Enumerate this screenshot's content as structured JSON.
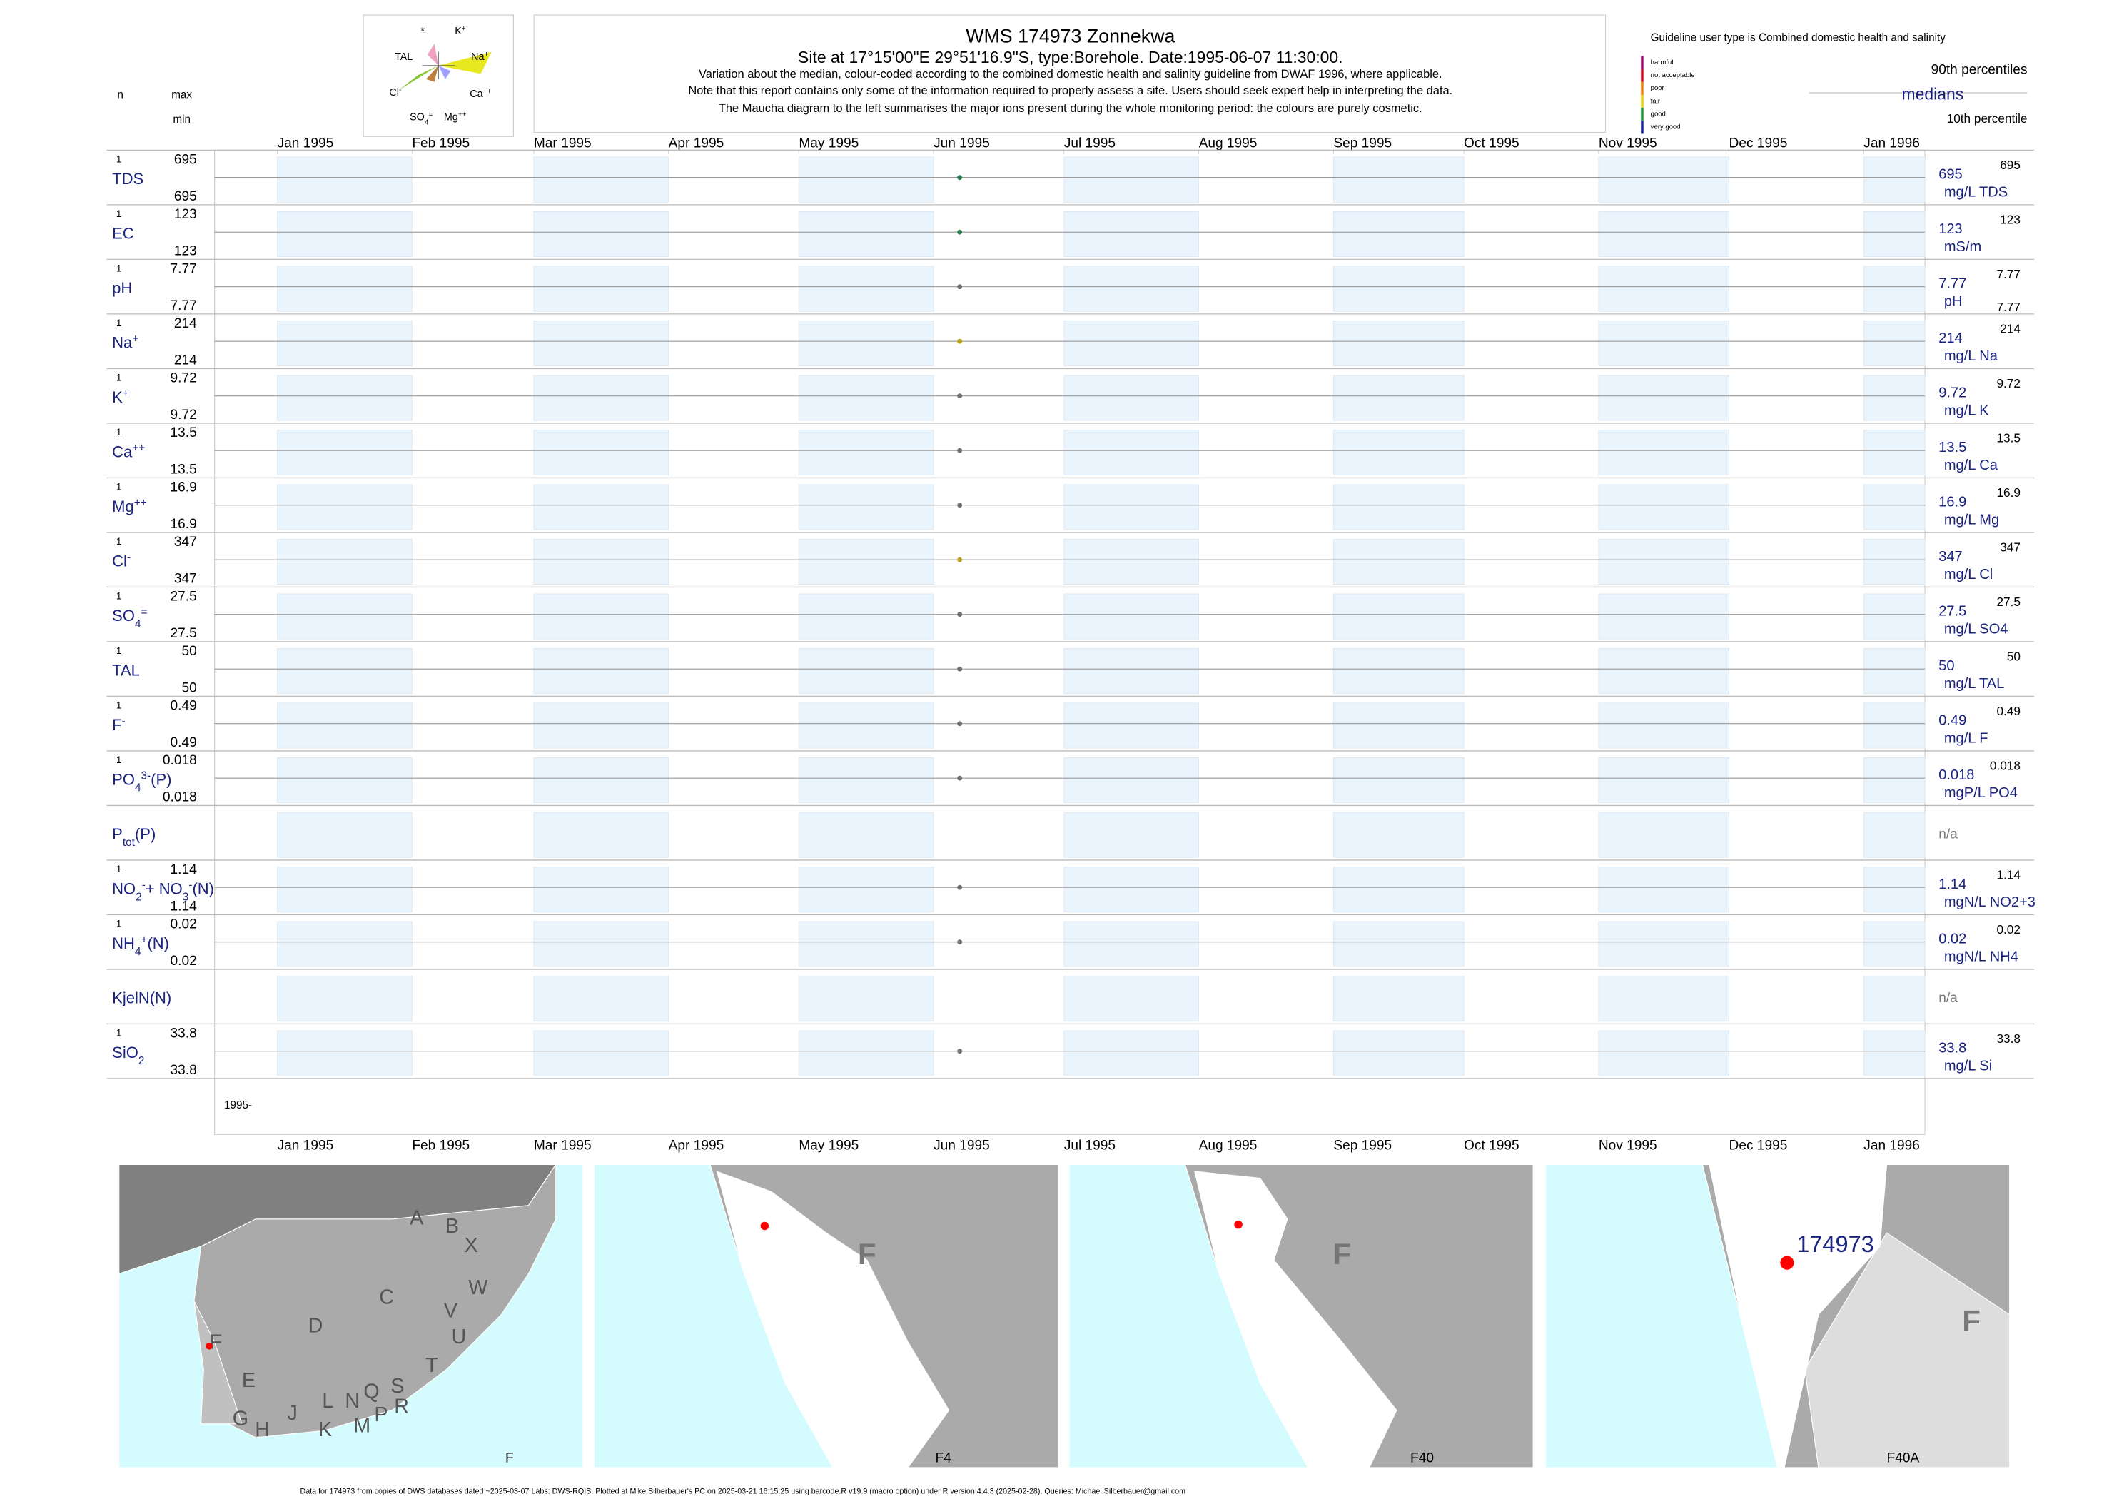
{
  "header": {
    "title": "WMS 174973  Zonnekwa",
    "subtitle": "Site at 17°15'00\"E 29°51'16.9\"S, type:Borehole. Date:1995-06-07 11:30:00.",
    "notes": [
      "Variation about the median,  colour-coded according to the combined domestic health and salinity guideline from DWAF 1996, where applicable.",
      "Note that this report contains only some of the information required to properly assess a site. Users should seek expert help in interpreting the data.",
      "The Maucha diagram to the left summarises the major ions present during the whole monitoring period: the colours are purely cosmetic."
    ],
    "col_n": "n",
    "col_max": "max",
    "col_min": "min"
  },
  "legend": {
    "guideline": "Guideline user type is Combined domestic health and salinity",
    "classes": [
      {
        "name": "harmful",
        "color": "#a0007a"
      },
      {
        "name": "not acceptable",
        "color": "#e0001a"
      },
      {
        "name": "poor",
        "color": "#f08000"
      },
      {
        "name": "fair",
        "color": "#e8d000"
      },
      {
        "name": "good",
        "color": "#1a9a30"
      },
      {
        "name": "very good",
        "color": "#1020a0"
      }
    ],
    "p90": "90th percentiles",
    "median": "medians",
    "p10": "10th percentile"
  },
  "maucha": {
    "labels": [
      [
        [
          "*",
          ""
        ]
      ],
      [
        [
          "K",
          ""
        ],
        [
          "+",
          "sup"
        ]
      ],
      [
        [
          "TAL",
          ""
        ]
      ],
      [
        [
          "Na",
          ""
        ],
        [
          "+",
          "sup"
        ]
      ],
      [
        [
          "Cl",
          ""
        ],
        [
          "-",
          "sup"
        ]
      ],
      [
        [
          "Ca",
          ""
        ],
        [
          "++",
          "sup"
        ]
      ],
      [
        [
          "SO",
          ""
        ],
        [
          "4",
          "sub"
        ],
        [
          "=",
          "sup"
        ]
      ],
      [
        [
          "Mg",
          ""
        ],
        [
          "++",
          "sup"
        ]
      ]
    ]
  },
  "plot": {
    "sample_date": "1995-06-07",
    "year_label": "1995-",
    "xticks": [
      {
        "value": "1995-01-01",
        "label": "Jan 1995"
      },
      {
        "value": "1995-02-01",
        "label": "Feb 1995"
      },
      {
        "value": "1995-03-01",
        "label": "Mar 1995"
      },
      {
        "value": "1995-04-01",
        "label": "Apr 1995"
      },
      {
        "value": "1995-05-01",
        "label": "May 1995"
      },
      {
        "value": "1995-06-01",
        "label": "Jun 1995"
      },
      {
        "value": "1995-07-01",
        "label": "Jul 1995"
      },
      {
        "value": "1995-08-01",
        "label": "Aug 1995"
      },
      {
        "value": "1995-09-01",
        "label": "Sep 1995"
      },
      {
        "value": "1995-10-01",
        "label": "Oct 1995"
      },
      {
        "value": "1995-11-01",
        "label": "Nov 1995"
      },
      {
        "value": "1995-12-01",
        "label": "Dec 1995"
      },
      {
        "value": "1996-01-01",
        "label": "Jan 1996"
      }
    ],
    "rows": [
      {
        "name": [
          [
            "TDS",
            ""
          ]
        ],
        "n": 1,
        "max": 695,
        "min": 695,
        "median": 695,
        "unit": "mg/L TDS",
        "color": "#2e7d4f"
      },
      {
        "name": [
          [
            "EC",
            ""
          ]
        ],
        "n": 1,
        "max": 123,
        "min": 123,
        "median": 123,
        "unit": "mS/m",
        "color": "#2e7d4f"
      },
      {
        "name": [
          [
            "pH",
            ""
          ]
        ],
        "n": 1,
        "max": 7.77,
        "min": 7.77,
        "median": 7.77,
        "unit": "pH",
        "color": "#707070",
        "right_min": true
      },
      {
        "name": [
          [
            "Na",
            ""
          ],
          [
            "+",
            "sup"
          ]
        ],
        "n": 1,
        "max": 214,
        "min": 214,
        "median": 214,
        "unit": "mg/L Na",
        "color": "#b5a020"
      },
      {
        "name": [
          [
            "K",
            ""
          ],
          [
            "+",
            "sup"
          ]
        ],
        "n": 1,
        "max": 9.72,
        "min": 9.72,
        "median": 9.72,
        "unit": "mg/L K",
        "color": "#707070"
      },
      {
        "name": [
          [
            "Ca",
            ""
          ],
          [
            "++",
            "sup"
          ]
        ],
        "n": 1,
        "max": 13.5,
        "min": 13.5,
        "median": 13.5,
        "unit": "mg/L Ca",
        "color": "#707070"
      },
      {
        "name": [
          [
            "Mg",
            ""
          ],
          [
            "++",
            "sup"
          ]
        ],
        "n": 1,
        "max": 16.9,
        "min": 16.9,
        "median": 16.9,
        "unit": "mg/L Mg",
        "color": "#707070"
      },
      {
        "name": [
          [
            "Cl",
            ""
          ],
          [
            "-",
            "sup"
          ]
        ],
        "n": 1,
        "max": 347,
        "min": 347,
        "median": 347,
        "unit": "mg/L Cl",
        "color": "#b5a020"
      },
      {
        "name": [
          [
            "SO",
            ""
          ],
          [
            "4",
            "sub"
          ],
          [
            "=",
            "sup"
          ]
        ],
        "n": 1,
        "max": 27.5,
        "min": 27.5,
        "median": 27.5,
        "unit": "mg/L SO4",
        "color": "#707070"
      },
      {
        "name": [
          [
            "TAL",
            ""
          ]
        ],
        "n": 1,
        "max": 50,
        "min": 50,
        "median": 50,
        "unit": "mg/L TAL",
        "color": "#707070"
      },
      {
        "name": [
          [
            "F",
            ""
          ],
          [
            "-",
            "sup"
          ]
        ],
        "n": 1,
        "max": 0.49,
        "min": 0.49,
        "median": 0.49,
        "unit": "mg/L F",
        "color": "#707070"
      },
      {
        "name": [
          [
            "PO",
            ""
          ],
          [
            "4",
            "sub"
          ],
          [
            "3-",
            "sup"
          ],
          [
            "(P)",
            ""
          ]
        ],
        "n": 1,
        "max": 0.018,
        "min": 0.018,
        "median": 0.018,
        "unit": "mgP/L PO4",
        "color": "#707070"
      },
      {
        "name": [
          [
            "P",
            ""
          ],
          [
            "tot",
            "sub"
          ],
          [
            "(P)",
            ""
          ]
        ],
        "median_label": "n/a"
      },
      {
        "name": [
          [
            "NO",
            ""
          ],
          [
            "2",
            "sub"
          ],
          [
            "-",
            "sup"
          ],
          [
            "+ NO",
            ""
          ],
          [
            "3",
            "sub"
          ],
          [
            "-",
            "sup"
          ],
          [
            "(N)",
            ""
          ]
        ],
        "n": 1,
        "max": 1.14,
        "min": 1.14,
        "median": 1.14,
        "unit": "mgN/L NO2+3",
        "color": "#707070"
      },
      {
        "name": [
          [
            "NH",
            ""
          ],
          [
            "4",
            "sub"
          ],
          [
            "+",
            "sup"
          ],
          [
            "(N)",
            ""
          ]
        ],
        "n": 1,
        "max": 0.02,
        "min": 0.02,
        "median": 0.02,
        "unit": "mgN/L NH4",
        "color": "#707070"
      },
      {
        "name": [
          [
            "KjelN(N)",
            ""
          ]
        ],
        "median_label": "n/a"
      },
      {
        "name": [
          [
            "SiO",
            ""
          ],
          [
            "2",
            "sub"
          ]
        ],
        "n": 1,
        "max": 33.8,
        "min": 33.8,
        "median": 33.8,
        "unit": "mg/L Si",
        "color": "#707070"
      }
    ]
  },
  "maps": [
    {
      "label": "F",
      "letters": [
        "A",
        "B",
        "X",
        "W",
        "C",
        "V",
        "U",
        "D",
        "T",
        "F",
        "E",
        "S",
        "Q",
        "N",
        "L",
        "R",
        "P",
        "M",
        "J",
        "K",
        "H",
        "G"
      ]
    },
    {
      "label": "F4",
      "letters": [
        "F"
      ]
    },
    {
      "label": "F40",
      "letters": [
        "F"
      ]
    },
    {
      "label": "F40A",
      "letters": [
        "F"
      ],
      "site": "174973"
    }
  ],
  "footer": "Data for 174973 from copies of DWS databases dated ~2025-03-07 Labs: DWS-RQIS. Plotted at Mike Silberbauer's PC on 2025-03-21 16:15:25 using barcode.R v19.9 (macro option) under R version 4.4.3 (2025-02-28). Queries: Michael.Silberbauer@gmail.com"
}
